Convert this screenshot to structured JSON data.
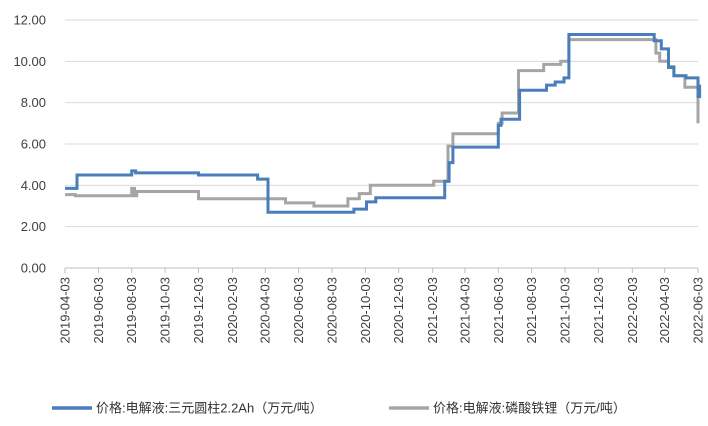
{
  "chart_data": {
    "type": "line",
    "title": "",
    "xlabel": "",
    "ylabel": "",
    "ylim": [
      0,
      12
    ],
    "y_ticks": [
      "0.00",
      "2.00",
      "4.00",
      "6.00",
      "8.00",
      "10.00",
      "12.00"
    ],
    "x_ticks": [
      "2019-04-03",
      "2019-06-03",
      "2019-08-03",
      "2019-10-03",
      "2019-12-03",
      "2020-02-03",
      "2020-04-03",
      "2020-06-03",
      "2020-08-03",
      "2020-10-03",
      "2020-12-03",
      "2021-02-03",
      "2021-04-03",
      "2021-06-03",
      "2021-08-03",
      "2021-10-03",
      "2021-12-03",
      "2022-02-03",
      "2022-04-03",
      "2022-06-03"
    ],
    "grid": "horizontal",
    "legend_position": "bottom",
    "series": [
      {
        "name": "价格:电解液:三元圆柱2.2Ah（万元/吨）",
        "color": "#4a7ebb",
        "step": true,
        "points": [
          [
            "2019-04-03",
            3.85
          ],
          [
            "2019-04-25",
            4.5
          ],
          [
            "2019-08-03",
            4.7
          ],
          [
            "2019-08-10",
            4.6
          ],
          [
            "2019-12-03",
            4.5
          ],
          [
            "2020-03-20",
            4.3
          ],
          [
            "2020-04-08",
            2.7
          ],
          [
            "2020-09-12",
            2.85
          ],
          [
            "2020-10-05",
            3.2
          ],
          [
            "2020-10-22",
            3.4
          ],
          [
            "2021-02-25",
            4.2
          ],
          [
            "2021-03-05",
            5.1
          ],
          [
            "2021-03-12",
            5.85
          ],
          [
            "2021-06-03",
            6.9
          ],
          [
            "2021-06-08",
            7.2
          ],
          [
            "2021-07-12",
            8.6
          ],
          [
            "2021-08-30",
            8.85
          ],
          [
            "2021-09-15",
            9.0
          ],
          [
            "2021-10-01",
            9.2
          ],
          [
            "2021-10-10",
            11.3
          ],
          [
            "2022-03-15",
            11.0
          ],
          [
            "2022-03-28",
            10.6
          ],
          [
            "2022-04-10",
            9.7
          ],
          [
            "2022-04-20",
            9.3
          ],
          [
            "2022-05-12",
            9.2
          ],
          [
            "2022-06-03",
            8.3
          ],
          [
            "2022-06-06",
            8.8
          ]
        ]
      },
      {
        "name": "价格:电解液:磷酸铁锂（万元/吨）",
        "color": "#a5a5a5",
        "step": true,
        "points": [
          [
            "2019-04-03",
            3.55
          ],
          [
            "2019-04-22",
            3.5
          ],
          [
            "2019-08-03",
            3.85
          ],
          [
            "2019-08-08",
            3.5
          ],
          [
            "2019-08-12",
            3.7
          ],
          [
            "2019-12-03",
            3.35
          ],
          [
            "2020-05-10",
            3.15
          ],
          [
            "2020-07-01",
            3.0
          ],
          [
            "2020-09-01",
            3.35
          ],
          [
            "2020-09-22",
            3.6
          ],
          [
            "2020-10-12",
            4.0
          ],
          [
            "2021-02-05",
            4.2
          ],
          [
            "2021-03-03",
            5.9
          ],
          [
            "2021-03-12",
            6.5
          ],
          [
            "2021-06-03",
            7.0
          ],
          [
            "2021-06-10",
            7.5
          ],
          [
            "2021-07-10",
            9.55
          ],
          [
            "2021-08-25",
            9.85
          ],
          [
            "2021-09-25",
            10.0
          ],
          [
            "2021-10-10",
            11.05
          ],
          [
            "2022-03-18",
            10.4
          ],
          [
            "2022-03-25",
            10.0
          ],
          [
            "2022-04-10",
            9.75
          ],
          [
            "2022-04-20",
            9.3
          ],
          [
            "2022-05-10",
            8.75
          ],
          [
            "2022-06-03",
            7.0
          ]
        ]
      }
    ]
  }
}
